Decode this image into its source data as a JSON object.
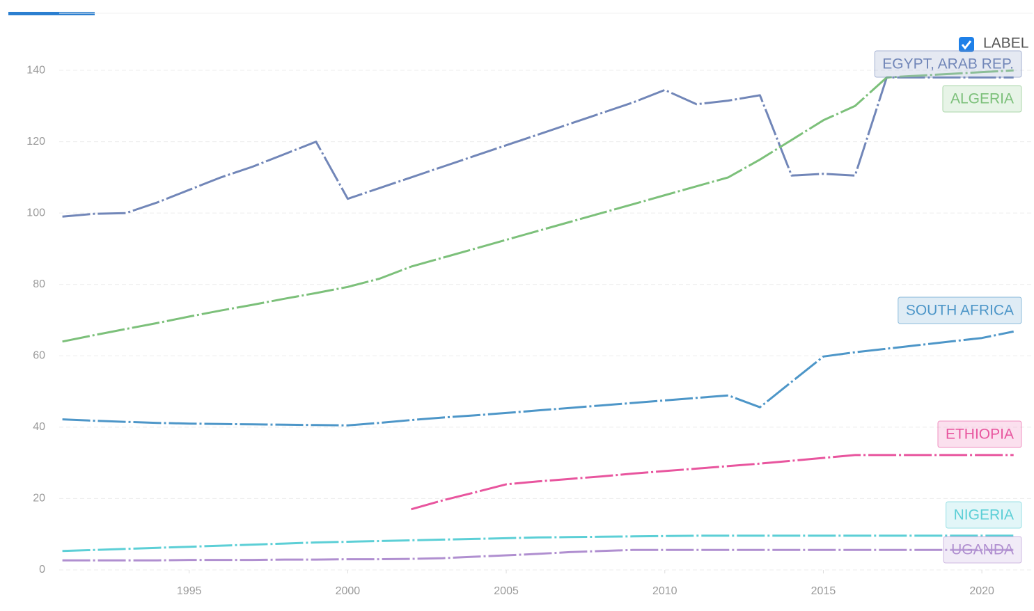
{
  "chart_data": {
    "type": "line",
    "toggle_label": "LABEL",
    "x": [
      1991,
      1992,
      1993,
      1994,
      1995,
      1996,
      1997,
      1998,
      1999,
      2000,
      2001,
      2002,
      2003,
      2004,
      2005,
      2006,
      2007,
      2008,
      2009,
      2010,
      2011,
      2012,
      2013,
      2014,
      2015,
      2016,
      2017,
      2018,
      2019,
      2020,
      2021
    ],
    "xlim": [
      1990.9,
      2021.6
    ],
    "xticks": [
      1995,
      2000,
      2005,
      2010,
      2015,
      2020
    ],
    "ylim": [
      0,
      156
    ],
    "yticks": [
      0,
      20,
      40,
      60,
      80,
      100,
      120,
      140
    ],
    "grid": true,
    "series": [
      {
        "name": "EGYPT, ARAB REP.",
        "color": "#7186b8",
        "values": [
          99,
          99.8,
          100,
          103,
          106.5,
          110,
          113,
          116.5,
          120,
          104,
          107,
          110,
          113,
          116,
          119,
          122,
          125,
          128,
          131,
          134.5,
          130.5,
          131.5,
          133,
          110.5,
          111,
          110.5,
          138,
          138,
          138,
          138,
          138
        ]
      },
      {
        "name": "ALGERIA",
        "color": "#7cc07a",
        "values": [
          64,
          65.8,
          67.5,
          69.2,
          71,
          72.7,
          74.3,
          76,
          77.6,
          79.3,
          81.6,
          85,
          87.5,
          90,
          92.5,
          95,
          97.5,
          100,
          102.5,
          105,
          107.5,
          110,
          115,
          120.5,
          126,
          130,
          138,
          138.5,
          139,
          139.5,
          140
        ]
      },
      {
        "name": "SOUTH AFRICA",
        "color": "#4d96c8",
        "values": [
          42.2,
          41.8,
          41.5,
          41.2,
          41,
          40.9,
          40.8,
          40.7,
          40.6,
          40.5,
          41.2,
          42,
          42.7,
          43.3,
          44,
          44.7,
          45.4,
          46.1,
          46.8,
          47.5,
          48.2,
          48.9,
          45.6,
          52.7,
          59.8,
          61,
          62,
          63,
          64,
          65,
          66.8
        ]
      },
      {
        "name": "ETHIOPIA",
        "color": "#e8559e",
        "values": [
          null,
          null,
          null,
          null,
          null,
          null,
          null,
          null,
          null,
          null,
          null,
          17,
          19.5,
          21.7,
          24,
          24.8,
          25.5,
          26.2,
          27,
          27.7,
          28.4,
          29.1,
          29.8,
          30.6,
          31.4,
          32.2,
          32.2,
          32.2,
          32.2,
          32.2,
          32.2
        ]
      },
      {
        "name": "NIGERIA",
        "color": "#5ccfd6",
        "values": [
          5.3,
          5.6,
          5.9,
          6.2,
          6.5,
          6.8,
          7.1,
          7.4,
          7.7,
          7.9,
          8.1,
          8.3,
          8.5,
          8.7,
          8.9,
          9.1,
          9.2,
          9.3,
          9.4,
          9.5,
          9.6,
          9.6,
          9.6,
          9.6,
          9.6,
          9.6,
          9.6,
          9.6,
          9.6,
          9.6,
          9.6
        ]
      },
      {
        "name": "UGANDA",
        "color": "#b08fd0",
        "values": [
          2.7,
          2.7,
          2.7,
          2.7,
          2.8,
          2.8,
          2.8,
          2.9,
          2.9,
          3.0,
          3.0,
          3.1,
          3.3,
          3.7,
          4.1,
          4.5,
          5.0,
          5.3,
          5.6,
          5.6,
          5.6,
          5.6,
          5.6,
          5.6,
          5.6,
          5.6,
          5.6,
          5.6,
          5.6,
          5.6,
          5.6
        ]
      }
    ]
  }
}
